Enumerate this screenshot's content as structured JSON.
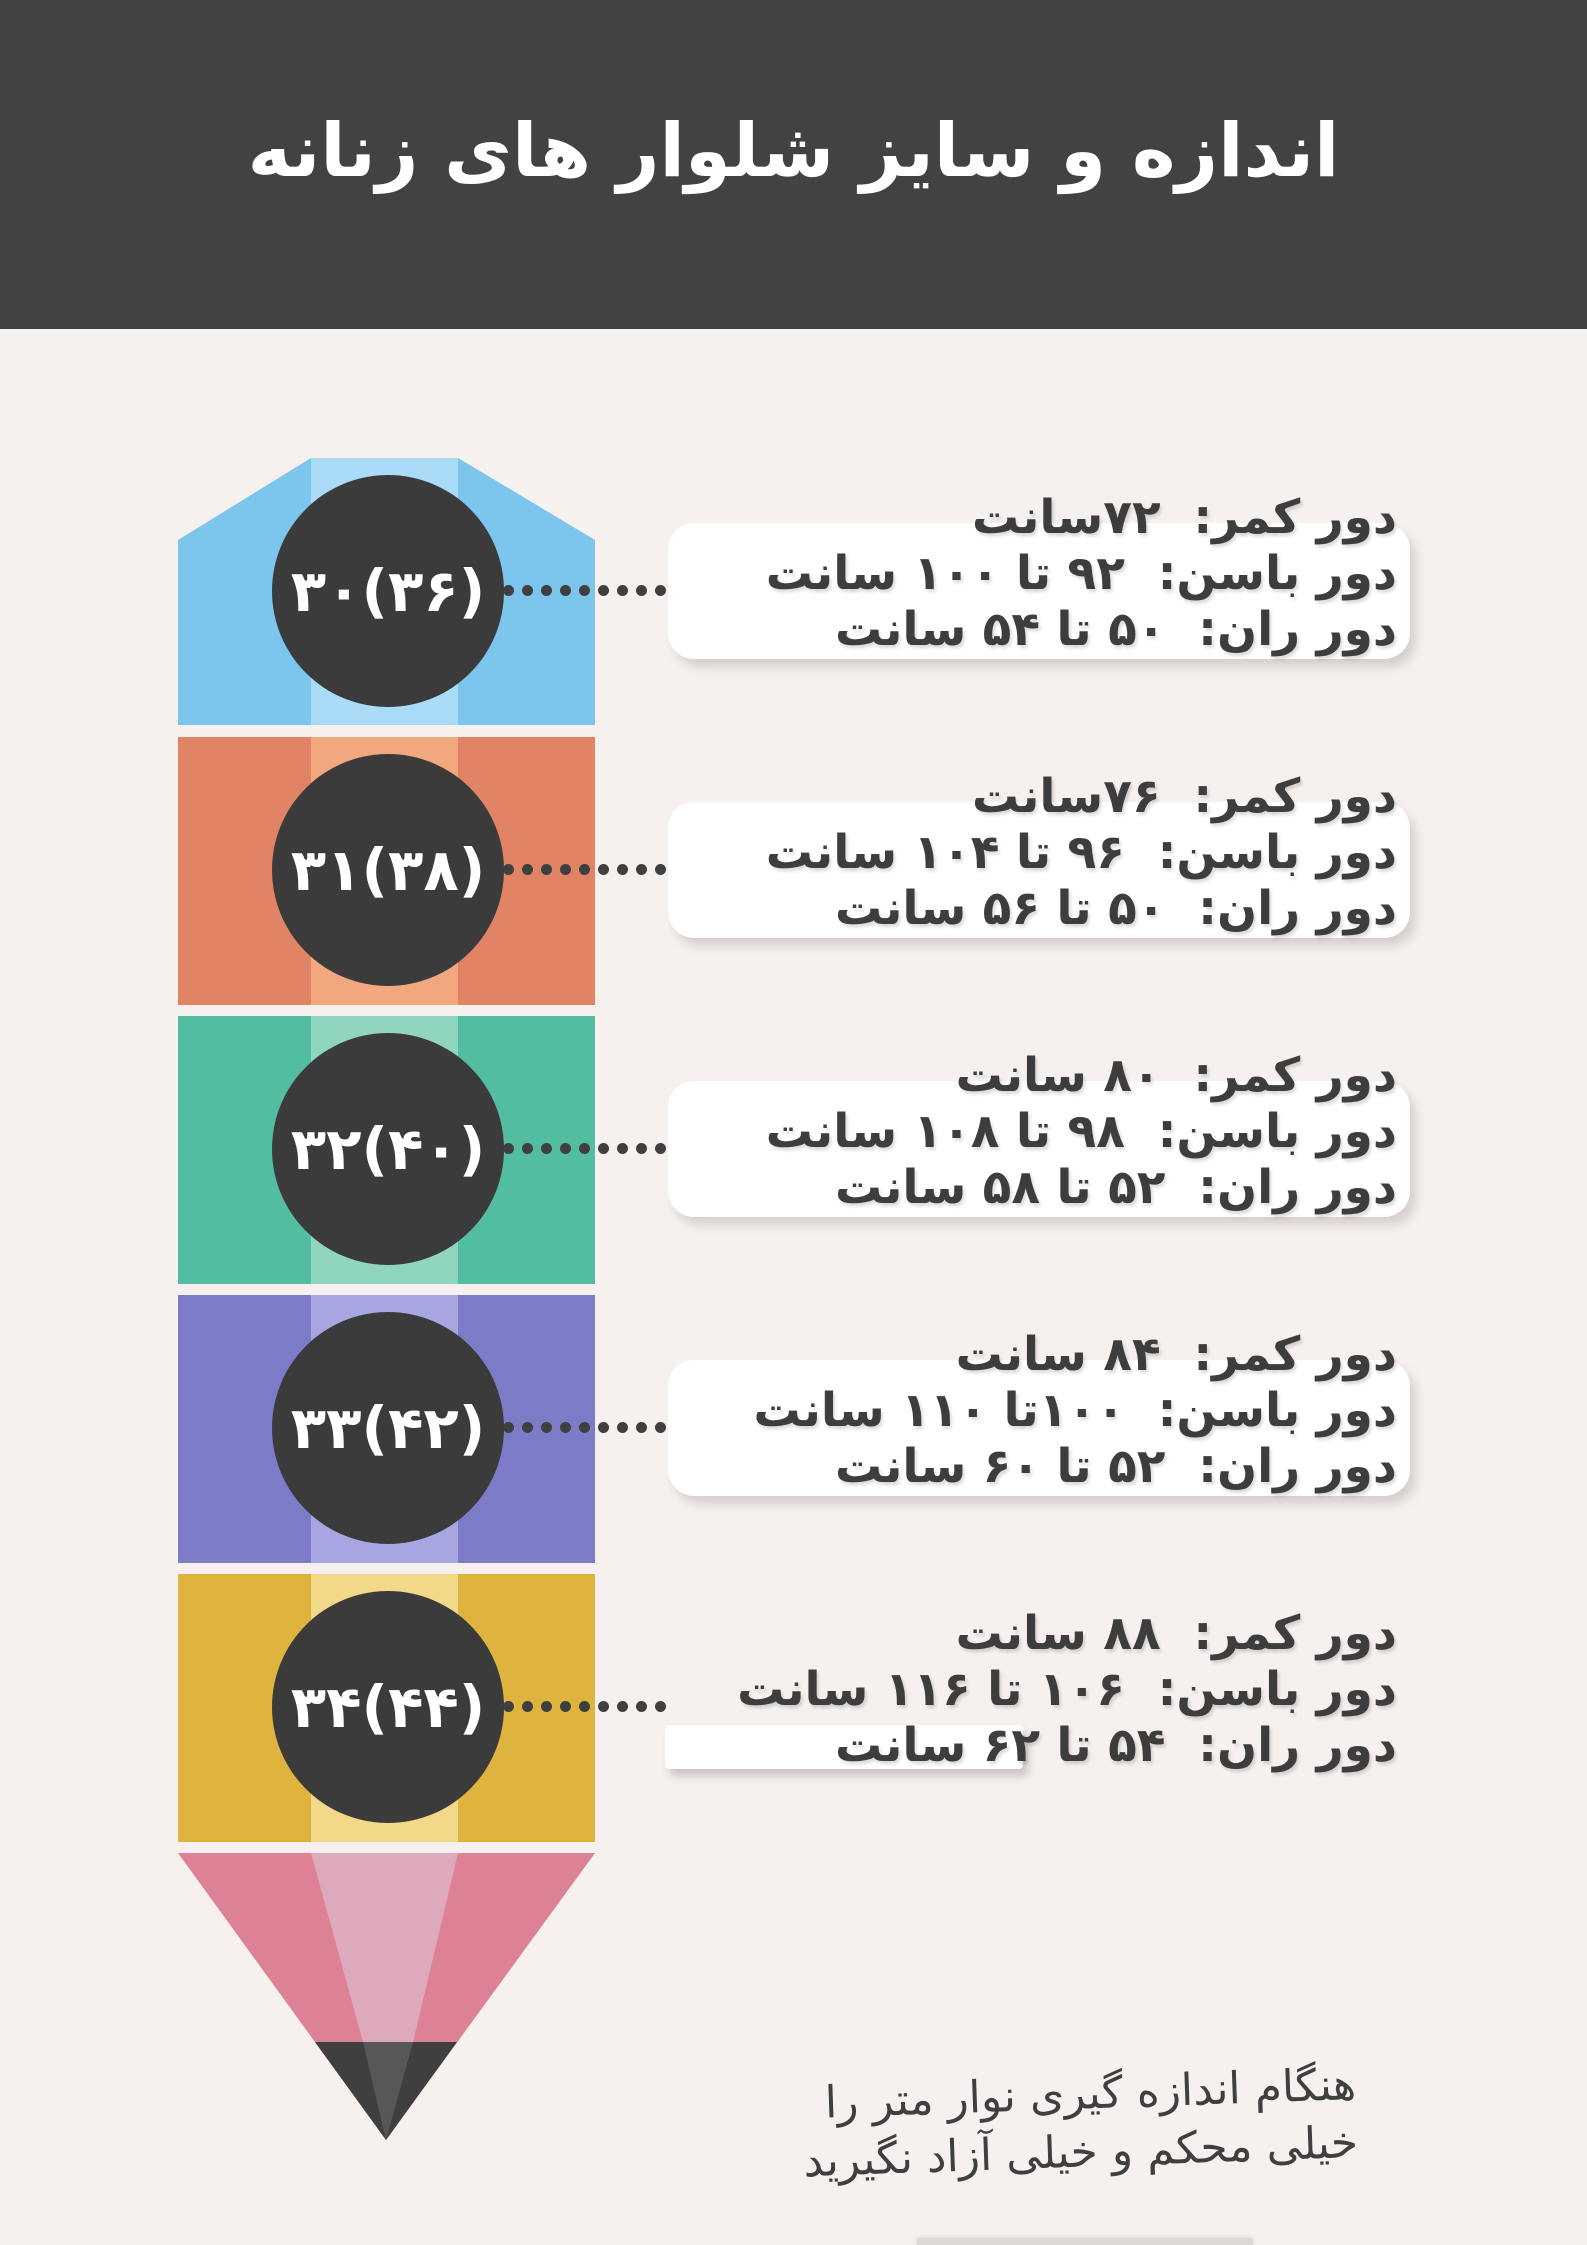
{
  "title": "اندازه و سایز شلوار های زنانه",
  "theme": {
    "background": "#f6f1ef",
    "header_background": "#424242",
    "header_text": "#ffffff",
    "box_background": "#ffffff",
    "text_color": "#3e3d3d",
    "dot_color": "#3f3f3f"
  },
  "pencil": {
    "circle_color": "#3b3b3b",
    "tip_color": "#dd8294",
    "tip_stripe_color": "#dfa9bd",
    "lead_color": "#3f3f3f",
    "lead_facet_color": "#575757"
  },
  "sizes": [
    {
      "label": "۳۰(۳۶)",
      "segment_color": "#7cc5ed",
      "stripe_color": "#abdcf7",
      "waist": "دور کمر:  ۷۲سانت",
      "hips": "دور باسن:  ۹۲ تا ۱۰۰ سانت",
      "thigh": "دور ران:  ۵۰ تا ۵۴ سانت"
    },
    {
      "label": "۳۱(۳۸)",
      "segment_color": "#e08465",
      "stripe_color": "#f2a87e",
      "waist": "دور کمر:  ۷۶سانت",
      "hips": "دور باسن:  ۹۶ تا ۱۰۴ سانت",
      "thigh": "دور ران:  ۵۰ تا ۵۶ سانت"
    },
    {
      "label": "۳۲(۴۰)",
      "segment_color": "#52bda1",
      "stripe_color": "#90d5c0",
      "waist": "دور کمر:  ۸۰ سانت",
      "hips": "دور باسن:  ۹۸ تا ۱۰۸ سانت",
      "thigh": "دور ران:  ۵۲ تا ۵۸ سانت"
    },
    {
      "label": "۳۳(۴۲)",
      "segment_color": "#7c7bc7",
      "stripe_color": "#a7a6e3",
      "waist": "دور کمر:  ۸۴ سانت",
      "hips": "دور باسن:  ۱۰۰تا ۱۱۰ سانت",
      "thigh": "دور ران:  ۵۲ تا ۶۰ سانت"
    },
    {
      "label": "۳۴(۴۴)",
      "segment_color": "#dfb43e",
      "stripe_color": "#f3d88a",
      "waist": "دور کمر:  ۸۸ سانت",
      "hips": "دور باسن:  ۱۰۶ تا ۱۱۶ سانت",
      "thigh": "دور ران:  ۵۴ تا ۶۲ سانت"
    }
  ],
  "note": {
    "line1": "هنگام اندازه گیری نوار متر را",
    "line2": "خیلی محکم و خیلی آزاد نگیرید"
  }
}
